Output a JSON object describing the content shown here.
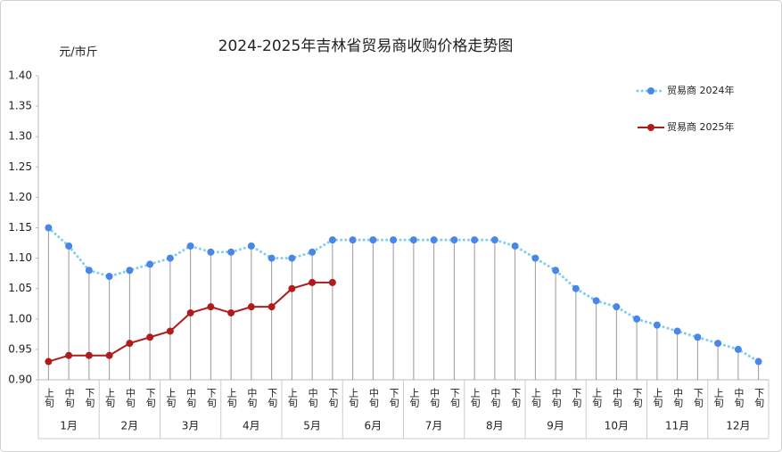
{
  "chart_data": {
    "type": "line",
    "title": "2024-2025年吉林省贸易商收购价格走势图",
    "y_label": "元/市斤",
    "categories": [
      "上旬",
      "中旬",
      "下旬",
      "上旬",
      "中旬",
      "下旬",
      "上旬",
      "中旬",
      "下旬",
      "上旬",
      "中旬",
      "下旬",
      "上旬",
      "中旬",
      "下旬",
      "上旬",
      "中旬",
      "下旬",
      "上旬",
      "中旬",
      "下旬",
      "上旬",
      "中旬",
      "下旬",
      "上旬",
      "中旬",
      "下旬",
      "上旬",
      "中旬",
      "下旬",
      "上旬",
      "中旬",
      "下旬",
      "上旬",
      "中旬",
      "下旬"
    ],
    "groups": [
      "1月",
      "2月",
      "3月",
      "4月",
      "5月",
      "6月",
      "7月",
      "8月",
      "9月",
      "10月",
      "11月",
      "12月"
    ],
    "series": [
      {
        "name": "贸易商 2024年",
        "color": "#7fd0ee",
        "marker_color": "#4a86e8",
        "line_style": "dotted",
        "values": [
          1.15,
          1.12,
          1.08,
          1.07,
          1.08,
          1.09,
          1.1,
          1.12,
          1.11,
          1.11,
          1.12,
          1.1,
          1.1,
          1.11,
          1.13,
          1.13,
          1.13,
          1.13,
          1.13,
          1.13,
          1.13,
          1.13,
          1.13,
          1.12,
          1.1,
          1.08,
          1.05,
          1.03,
          1.02,
          1.0,
          0.99,
          0.98,
          0.97,
          0.96,
          0.95,
          0.93
        ]
      },
      {
        "name": "贸易商 2025年",
        "color": "#b01c1c",
        "marker_color": "#b01c1c",
        "line_style": "solid",
        "values": [
          0.93,
          0.94,
          0.94,
          0.94,
          0.96,
          0.97,
          0.98,
          1.01,
          1.02,
          1.01,
          1.02,
          1.02,
          1.05,
          1.06,
          1.06,
          null,
          null,
          null,
          null,
          null,
          null,
          null,
          null,
          null,
          null,
          null,
          null,
          null,
          null,
          null,
          null,
          null,
          null,
          null,
          null,
          null
        ]
      }
    ],
    "ylim": [
      0.9,
      1.4
    ],
    "yticks": [
      {
        "value": 0.9,
        "label": "0.90"
      },
      {
        "value": 0.95,
        "label": "0.95"
      },
      {
        "value": 1.0,
        "label": "1.00"
      },
      {
        "value": 1.05,
        "label": "1.05"
      },
      {
        "value": 1.1,
        "label": "1.10"
      },
      {
        "value": 1.15,
        "label": "1.15"
      },
      {
        "value": 1.2,
        "label": "1.20"
      },
      {
        "value": 1.25,
        "label": "1.25"
      },
      {
        "value": 1.3,
        "label": "1.30"
      },
      {
        "value": 1.35,
        "label": "1.35"
      },
      {
        "value": 1.4,
        "label": "1.40"
      }
    ],
    "drop_lines": true,
    "legend": "top-right"
  }
}
